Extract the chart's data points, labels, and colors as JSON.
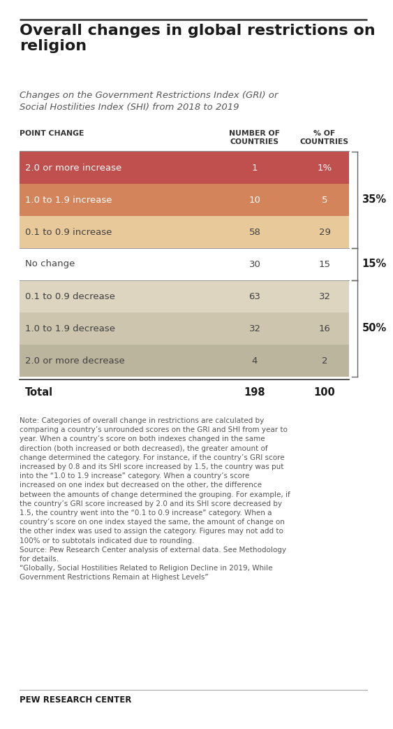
{
  "title": "Overall changes in global restrictions on\nreligion",
  "subtitle": "Changes on the Government Restrictions Index (GRI) or\nSocial Hostilities Index (SHI) from 2018 to 2019",
  "rows": [
    {
      "label": "2.0 or more increase",
      "count": "1",
      "pct": "1%",
      "color": "#c0504d",
      "text_color": "#ffffff"
    },
    {
      "label": "1.0 to 1.9 increase",
      "count": "10",
      "pct": "5",
      "color": "#d4845a",
      "text_color": "#ffffff"
    },
    {
      "label": "0.1 to 0.9 increase",
      "count": "58",
      "pct": "29",
      "color": "#e8c99a",
      "text_color": "#404040"
    },
    {
      "label": "No change",
      "count": "30",
      "pct": "15",
      "color": null,
      "text_color": "#404040"
    },
    {
      "label": "0.1 to 0.9 decrease",
      "count": "63",
      "pct": "32",
      "color": "#ddd5bf",
      "text_color": "#404040"
    },
    {
      "label": "1.0 to 1.9 decrease",
      "count": "32",
      "pct": "16",
      "color": "#cdc5ae",
      "text_color": "#404040"
    },
    {
      "label": "2.0 or more decrease",
      "count": "4",
      "pct": "2",
      "color": "#bcb59e",
      "text_color": "#404040"
    }
  ],
  "total_row": {
    "label": "Total",
    "count": "198",
    "pct": "100"
  },
  "brace_groups": [
    {
      "rows": [
        0,
        1,
        2
      ],
      "label": "35%"
    },
    {
      "rows": [
        3
      ],
      "label": "15%"
    },
    {
      "rows": [
        4,
        5,
        6
      ],
      "label": "50%"
    }
  ],
  "note_text": "Note: Categories of overall change in restrictions are calculated by comparing a country’s unrounded scores on the GRI and SHI from year to year. When a country’s score on both indexes changed in the same direction (both increased or both decreased), the greater amount of change determined the category. For instance, if the country’s GRI score increased by 0.8 and its SHI score increased by 1.5, the country was put into the “1.0 to 1.9 increase” category. When a country’s score increased on one index but decreased on the other, the difference between the amounts of change determined the grouping. For example, if the country’s GRI score increased by 2.0 and its SHI score decreased by 1.5, the country went into the “0.1 to 0.9 increase” category. When a country’s score on one index stayed the same, the amount of change on the other index was used to assign the category. Figures may not add to 100% or to subtotals indicated due to rounding.\nSource: Pew Research Center analysis of external data. See Methodology for details.\n“Globally, Social Hostilities Related to Religion Decline in 2019, While Government Restrictions Remain at Highest Levels”",
  "footer": "PEW RESEARCH CENTER",
  "bg_color": "#ffffff"
}
